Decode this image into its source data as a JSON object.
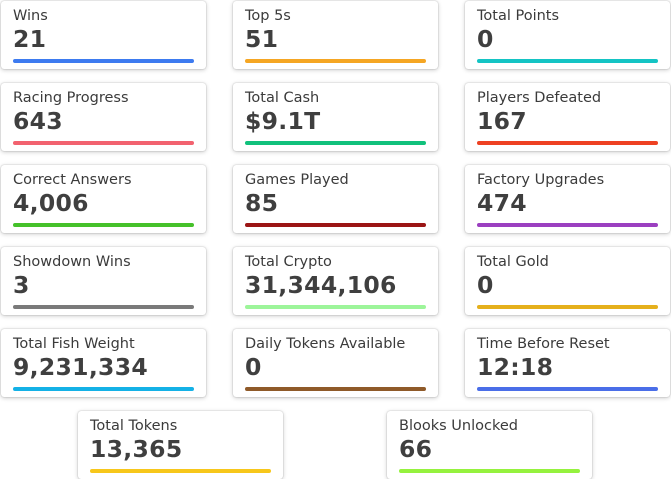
{
  "stats": [
    {
      "label": "Wins",
      "value": "21",
      "color": "#3d7bf0"
    },
    {
      "label": "Top 5s",
      "value": "51",
      "color": "#f5a623"
    },
    {
      "label": "Total Points",
      "value": "0",
      "color": "#14c4c4"
    },
    {
      "label": "Racing Progress",
      "value": "643",
      "color": "#f2626f"
    },
    {
      "label": "Total Cash",
      "value": "$9.1T",
      "color": "#11c17c"
    },
    {
      "label": "Players Defeated",
      "value": "167",
      "color": "#ee4122"
    },
    {
      "label": "Correct Answers",
      "value": "4,006",
      "color": "#45c12a"
    },
    {
      "label": "Games Played",
      "value": "85",
      "color": "#9b1515"
    },
    {
      "label": "Factory Upgrades",
      "value": "474",
      "color": "#9b3fc0"
    },
    {
      "label": "Showdown Wins",
      "value": "3",
      "color": "#7a7a7a"
    },
    {
      "label": "Total Crypto",
      "value": "31,344,106",
      "color": "#9df59a"
    },
    {
      "label": "Total Gold",
      "value": "0",
      "color": "#e5b01c"
    },
    {
      "label": "Total Fish Weight",
      "value": "9,231,334",
      "color": "#14b1e6"
    },
    {
      "label": "Daily Tokens Available",
      "value": "0",
      "color": "#8f5a29"
    },
    {
      "label": "Time Before Reset",
      "value": "12:18",
      "color": "#4a6ee8"
    },
    {
      "label": "Total Tokens",
      "value": "13,365",
      "color": "#f7c71b"
    },
    {
      "label": "Blooks Unlocked",
      "value": "66",
      "color": "#95f23e"
    }
  ]
}
